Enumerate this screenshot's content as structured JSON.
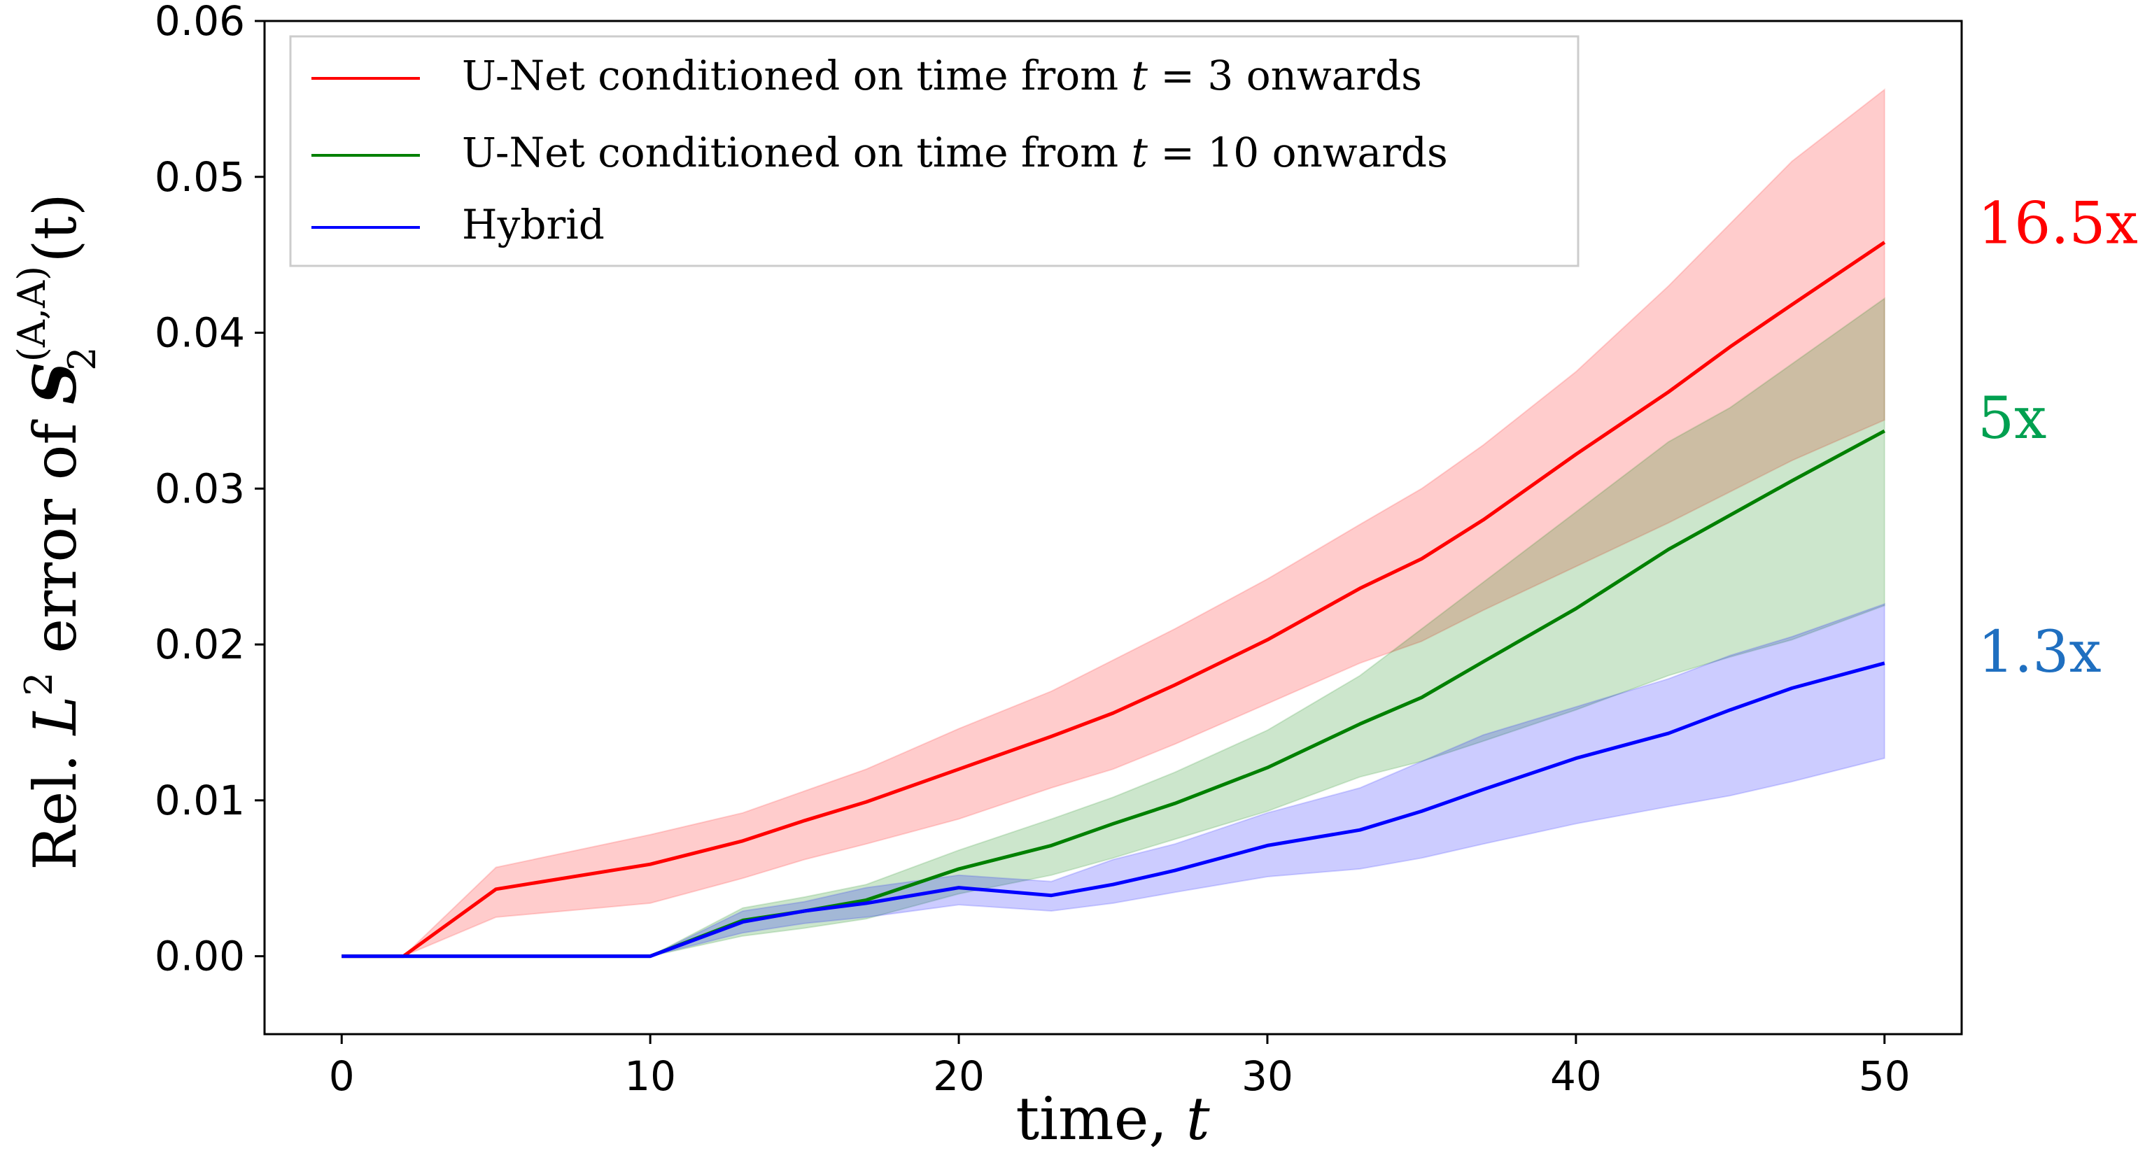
{
  "chart_data": {
    "type": "line",
    "xlabel": {
      "text": "time, ",
      "var": "t"
    },
    "ylabel": {
      "prefix": "Rel. ",
      "lsym": "L",
      "lexp": "2",
      "mid": " error of ",
      "ssym": "S",
      "ssub": "2",
      "ssup": "(A,A)",
      "targ": "(t)"
    },
    "xlim": [
      -2.5,
      52.5
    ],
    "ylim": [
      -0.005,
      0.06
    ],
    "xticks": [
      0,
      10,
      20,
      30,
      40,
      50
    ],
    "xtick_labels": [
      "0",
      "10",
      "20",
      "30",
      "40",
      "50"
    ],
    "yticks": [
      0.0,
      0.01,
      0.02,
      0.03,
      0.04,
      0.05,
      0.06
    ],
    "ytick_labels": [
      "0.00",
      "0.01",
      "0.02",
      "0.03",
      "0.04",
      "0.05",
      "0.06"
    ],
    "legend_position": "top-left",
    "x": [
      0,
      2,
      5,
      10,
      13,
      15,
      17,
      20,
      23,
      25,
      27,
      30,
      33,
      35,
      37,
      40,
      43,
      45,
      47,
      50
    ],
    "series": [
      {
        "name": "U-Net conditioned on time from t = 3 onwards",
        "legend_prefix": "U-Net conditioned on time from ",
        "legend_var": "t",
        "legend_suffix": " = 3 onwards",
        "color": "#ff0000",
        "values": [
          0,
          0,
          0.0043,
          0.0059,
          0.0074,
          0.0087,
          0.0099,
          0.012,
          0.0141,
          0.0156,
          0.0174,
          0.0203,
          0.0236,
          0.0255,
          0.028,
          0.0322,
          0.0362,
          0.0391,
          0.0418,
          0.0458
        ],
        "lower": [
          0,
          0,
          0.0025,
          0.0034,
          0.005,
          0.0062,
          0.0072,
          0.0088,
          0.0108,
          0.012,
          0.0136,
          0.0162,
          0.0188,
          0.0202,
          0.0222,
          0.025,
          0.0278,
          0.0298,
          0.0318,
          0.0344
        ],
        "upper": [
          0,
          0,
          0.0057,
          0.0078,
          0.0092,
          0.0106,
          0.012,
          0.0146,
          0.017,
          0.019,
          0.021,
          0.0242,
          0.0277,
          0.03,
          0.0328,
          0.0375,
          0.043,
          0.047,
          0.051,
          0.0556
        ]
      },
      {
        "name": "U-Net conditioned on time from t = 10 onwards",
        "legend_prefix": "U-Net conditioned on time from ",
        "legend_var": "t",
        "legend_suffix": " = 10 onwards",
        "color": "#008000",
        "values": [
          0,
          0,
          0,
          0,
          0.0023,
          0.0029,
          0.0036,
          0.0056,
          0.0071,
          0.0085,
          0.0098,
          0.0121,
          0.0149,
          0.0166,
          0.0189,
          0.0223,
          0.0261,
          0.0283,
          0.0305,
          0.0337
        ],
        "lower": [
          0,
          0,
          0,
          0,
          0.0013,
          0.0018,
          0.0024,
          0.004,
          0.0052,
          0.0063,
          0.0075,
          0.0093,
          0.0115,
          0.0125,
          0.0138,
          0.0158,
          0.018,
          0.0192,
          0.0203,
          0.0225
        ],
        "upper": [
          0,
          0,
          0,
          0,
          0.0031,
          0.0038,
          0.0046,
          0.0068,
          0.0088,
          0.0102,
          0.0118,
          0.0145,
          0.018,
          0.021,
          0.024,
          0.0285,
          0.033,
          0.0352,
          0.038,
          0.0422
        ]
      },
      {
        "name": "Hybrid",
        "legend_prefix": "Hybrid",
        "legend_var": "",
        "legend_suffix": "",
        "color": "#0000ff",
        "values": [
          0,
          0,
          0,
          0,
          0.0022,
          0.0029,
          0.0034,
          0.0044,
          0.0039,
          0.0046,
          0.0055,
          0.0071,
          0.0081,
          0.0093,
          0.0107,
          0.0127,
          0.0143,
          0.0158,
          0.0172,
          0.0188
        ],
        "lower": [
          0,
          0,
          0,
          0,
          0.0015,
          0.0021,
          0.0025,
          0.0033,
          0.0029,
          0.0034,
          0.0041,
          0.0051,
          0.0056,
          0.0063,
          0.0072,
          0.0085,
          0.0096,
          0.0103,
          0.0112,
          0.0127
        ],
        "upper": [
          0,
          0,
          0,
          0,
          0.0029,
          0.0035,
          0.0044,
          0.0052,
          0.0048,
          0.0062,
          0.0072,
          0.0092,
          0.0108,
          0.0125,
          0.0142,
          0.016,
          0.0178,
          0.0193,
          0.0205,
          0.0226
        ]
      }
    ],
    "annotations": [
      {
        "text": "16.5x",
        "color": "#ff0000",
        "y": 0.047
      },
      {
        "text": "5x",
        "color": "#00a050",
        "y": 0.0345
      },
      {
        "text": "1.3x",
        "color": "#1f6fc0",
        "y": 0.0195
      }
    ]
  }
}
